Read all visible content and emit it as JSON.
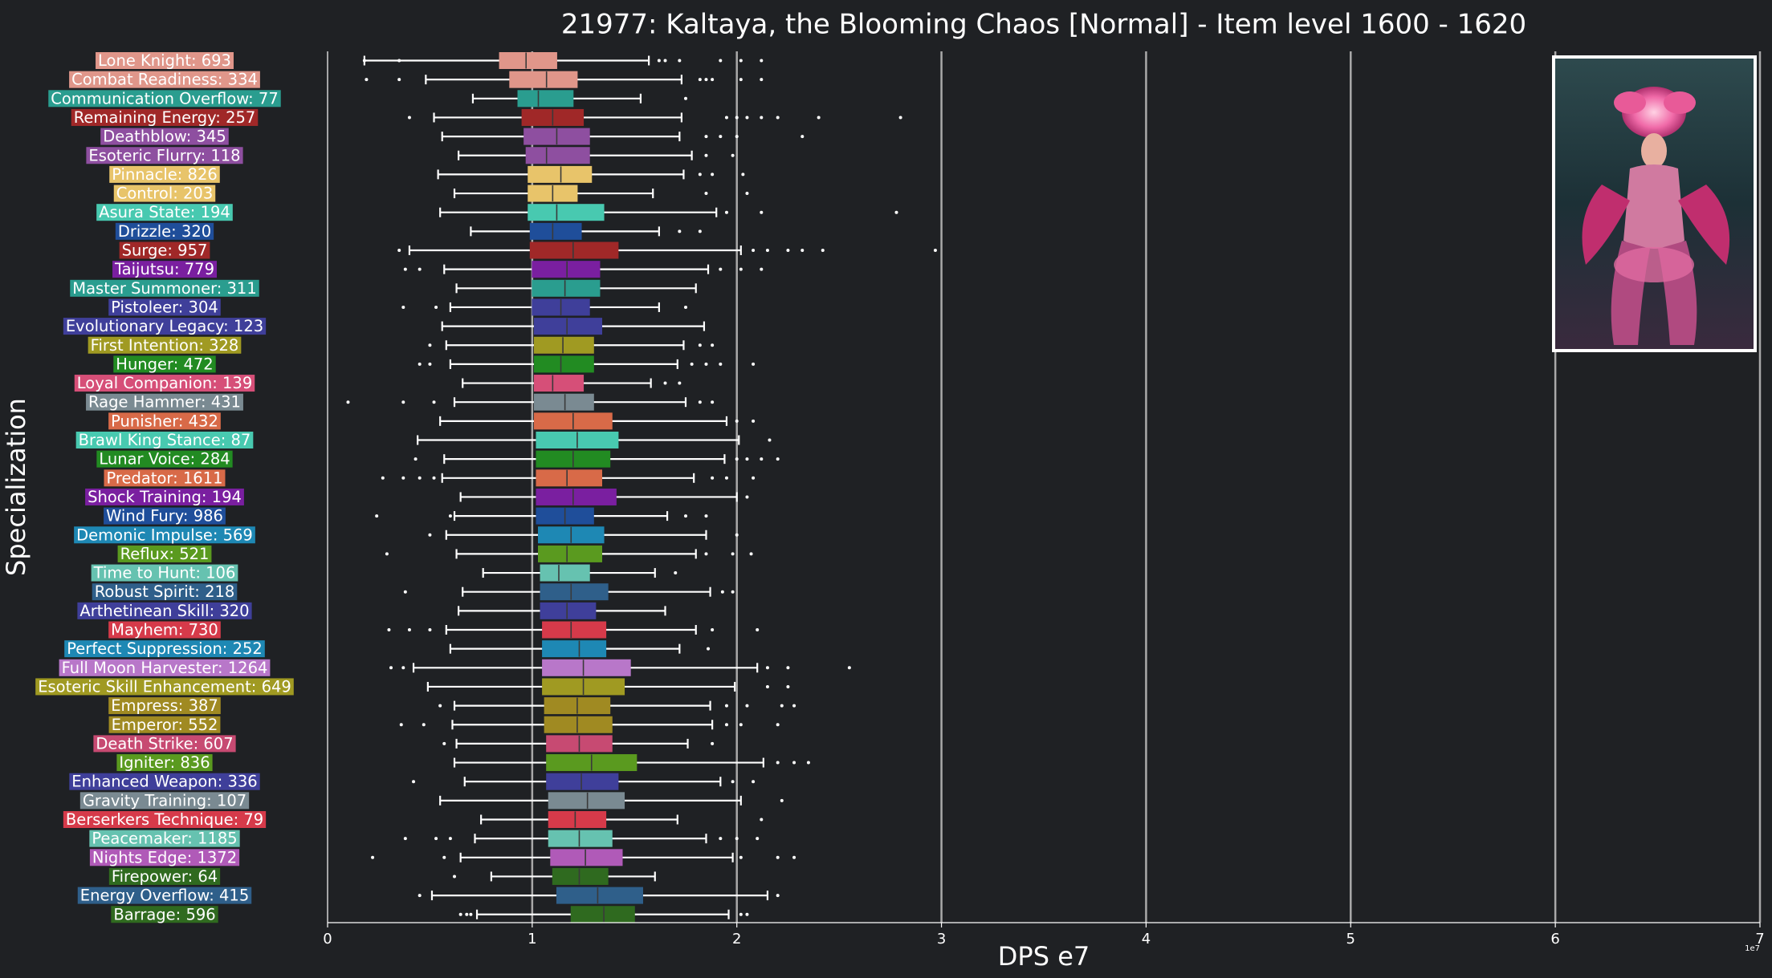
{
  "chart_data": {
    "type": "box",
    "title": "21977: Kaltaya, the Blooming Chaos [Normal] - Item level 1600 - 1620",
    "xlabel": "DPS e7",
    "ylabel": "Specialization",
    "xlim": [
      0,
      7
    ],
    "xticks": [
      "0",
      "1",
      "2",
      "3",
      "4",
      "5",
      "6",
      "7"
    ],
    "offset_text": "1e7",
    "grid": "vertical lines at x ticks",
    "boss_image": "boss-portrait",
    "series": [
      {
        "label": "Lone Knight: 693",
        "color": "#e0968a",
        "wl": 0.18,
        "q1": 0.84,
        "med": 0.97,
        "q3": 1.12,
        "wh": 1.57,
        "out": [
          0.18,
          0.35,
          1.62,
          1.65,
          1.72,
          1.92,
          2.02,
          2.12
        ]
      },
      {
        "label": "Combat Readiness: 334",
        "color": "#e0968a",
        "wl": 0.48,
        "q1": 0.89,
        "med": 1.07,
        "q3": 1.22,
        "wh": 1.73,
        "out": [
          0.19,
          0.35,
          1.82,
          1.85,
          1.88,
          2.02,
          2.12
        ]
      },
      {
        "label": "Communication Overflow: 77",
        "color": "#2a9d8f",
        "wl": 0.71,
        "q1": 0.93,
        "med": 1.03,
        "q3": 1.2,
        "wh": 1.53,
        "out": [
          1.75
        ]
      },
      {
        "label": "Remaining Energy: 257",
        "color": "#a02828",
        "wl": 0.52,
        "q1": 0.95,
        "med": 1.1,
        "q3": 1.25,
        "wh": 1.73,
        "out": [
          0.4,
          1.95,
          2.0,
          2.05,
          2.12,
          2.2,
          2.4,
          2.8
        ]
      },
      {
        "label": "Deathblow: 345",
        "color": "#8e4fa0",
        "wl": 0.56,
        "q1": 0.96,
        "med": 1.12,
        "q3": 1.28,
        "wh": 1.72,
        "out": [
          1.85,
          1.92,
          2.0,
          2.32
        ]
      },
      {
        "label": "Esoteric Flurry: 118",
        "color": "#8e4fa0",
        "wl": 0.64,
        "q1": 0.97,
        "med": 1.07,
        "q3": 1.28,
        "wh": 1.78,
        "out": [
          1.85,
          1.98
        ]
      },
      {
        "label": "Pinnacle: 826",
        "color": "#e8c46a",
        "wl": 0.54,
        "q1": 0.98,
        "med": 1.14,
        "q3": 1.29,
        "wh": 1.74,
        "out": [
          1.82,
          1.88,
          2.03
        ]
      },
      {
        "label": "Control: 203",
        "color": "#e8c46a",
        "wl": 0.62,
        "q1": 0.98,
        "med": 1.1,
        "q3": 1.22,
        "wh": 1.59,
        "out": [
          1.85,
          2.05
        ]
      },
      {
        "label": "Asura State: 194",
        "color": "#48c9b0",
        "wl": 0.55,
        "q1": 0.98,
        "med": 1.12,
        "q3": 1.35,
        "wh": 1.9,
        "out": [
          1.95,
          2.12,
          2.78
        ]
      },
      {
        "label": "Drizzle: 320",
        "color": "#1f4e9a",
        "wl": 0.7,
        "q1": 0.99,
        "med": 1.1,
        "q3": 1.24,
        "wh": 1.62,
        "out": [
          1.72,
          1.82
        ]
      },
      {
        "label": "Surge: 957",
        "color": "#a02828",
        "wl": 0.4,
        "q1": 0.99,
        "med": 1.2,
        "q3": 1.42,
        "wh": 2.02,
        "out": [
          0.35,
          2.08,
          2.15,
          2.25,
          2.32,
          2.42,
          2.97
        ]
      },
      {
        "label": "Taijutsu: 779",
        "color": "#7a1fa0",
        "wl": 0.57,
        "q1": 1.0,
        "med": 1.17,
        "q3": 1.33,
        "wh": 1.86,
        "out": [
          0.38,
          0.45,
          1.92,
          2.02,
          2.12
        ]
      },
      {
        "label": "Master Summoner: 311",
        "color": "#2a9d8f",
        "wl": 0.63,
        "q1": 1.0,
        "med": 1.16,
        "q3": 1.33,
        "wh": 1.8,
        "out": []
      },
      {
        "label": "Pistoleer: 304",
        "color": "#3f3f9a",
        "wl": 0.6,
        "q1": 1.0,
        "med": 1.14,
        "q3": 1.28,
        "wh": 1.62,
        "out": [
          0.37,
          0.53,
          1.75
        ]
      },
      {
        "label": "Evolutionary Legacy: 123",
        "color": "#3f3f9a",
        "wl": 0.56,
        "q1": 1.01,
        "med": 1.17,
        "q3": 1.34,
        "wh": 1.84,
        "out": []
      },
      {
        "label": "First Intention: 328",
        "color": "#a09a22",
        "wl": 0.58,
        "q1": 1.01,
        "med": 1.15,
        "q3": 1.3,
        "wh": 1.74,
        "out": [
          0.5,
          1.82,
          1.88
        ]
      },
      {
        "label": "Hunger: 472",
        "color": "#228b22",
        "wl": 0.6,
        "q1": 1.01,
        "med": 1.14,
        "q3": 1.3,
        "wh": 1.71,
        "out": [
          0.45,
          0.5,
          1.78,
          1.85,
          1.92,
          2.08
        ]
      },
      {
        "label": "Loyal Companion: 139",
        "color": "#d64f78",
        "wl": 0.66,
        "q1": 1.01,
        "med": 1.1,
        "q3": 1.25,
        "wh": 1.58,
        "out": [
          1.65,
          1.72
        ]
      },
      {
        "label": "Rage Hammer: 431",
        "color": "#7a8a92",
        "wl": 0.62,
        "q1": 1.01,
        "med": 1.16,
        "q3": 1.3,
        "wh": 1.75,
        "out": [
          0.1,
          0.37,
          0.52,
          1.82,
          1.88
        ]
      },
      {
        "label": "Punisher: 432",
        "color": "#d86a48",
        "wl": 0.55,
        "q1": 1.01,
        "med": 1.2,
        "q3": 1.39,
        "wh": 1.95,
        "out": [
          2.0,
          2.08
        ]
      },
      {
        "label": "Brawl King Stance: 87",
        "color": "#48c9b0",
        "wl": 0.44,
        "q1": 1.02,
        "med": 1.22,
        "q3": 1.42,
        "wh": 2.01,
        "out": [
          2.16
        ]
      },
      {
        "label": "Lunar Voice: 284",
        "color": "#228b22",
        "wl": 0.57,
        "q1": 1.02,
        "med": 1.2,
        "q3": 1.38,
        "wh": 1.94,
        "out": [
          0.43,
          2.0,
          2.05,
          2.12,
          2.2
        ]
      },
      {
        "label": "Predator: 1611",
        "color": "#d86a48",
        "wl": 0.56,
        "q1": 1.02,
        "med": 1.17,
        "q3": 1.34,
        "wh": 1.79,
        "out": [
          0.27,
          0.37,
          0.45,
          0.52,
          1.88,
          1.95,
          2.08
        ]
      },
      {
        "label": "Shock Training: 194",
        "color": "#7a1fa0",
        "wl": 0.65,
        "q1": 1.02,
        "med": 1.2,
        "q3": 1.41,
        "wh": 2.0,
        "out": [
          2.05
        ]
      },
      {
        "label": "Wind Fury: 986",
        "color": "#1f4e9a",
        "wl": 0.62,
        "q1": 1.02,
        "med": 1.16,
        "q3": 1.3,
        "wh": 1.66,
        "out": [
          0.24,
          0.6,
          1.75,
          1.85
        ]
      },
      {
        "label": "Demonic Impulse: 569",
        "color": "#1e88b4",
        "wl": 0.58,
        "q1": 1.03,
        "med": 1.19,
        "q3": 1.35,
        "wh": 1.85,
        "out": [
          0.5,
          2.0
        ]
      },
      {
        "label": "Reflux: 521",
        "color": "#5a9a1f",
        "wl": 0.63,
        "q1": 1.03,
        "med": 1.17,
        "q3": 1.34,
        "wh": 1.8,
        "out": [
          0.29,
          1.85,
          1.98,
          2.07
        ]
      },
      {
        "label": "Time to Hunt: 106",
        "color": "#66c2b0",
        "wl": 0.76,
        "q1": 1.04,
        "med": 1.13,
        "q3": 1.28,
        "wh": 1.6,
        "out": [
          1.7
        ]
      },
      {
        "label": "Robust Spirit: 218",
        "color": "#2f5f8a",
        "wl": 0.66,
        "q1": 1.04,
        "med": 1.19,
        "q3": 1.37,
        "wh": 1.87,
        "out": [
          0.38,
          1.93,
          1.98
        ]
      },
      {
        "label": "Arthetinean Skill: 320",
        "color": "#3f3f9a",
        "wl": 0.64,
        "q1": 1.04,
        "med": 1.17,
        "q3": 1.31,
        "wh": 1.65,
        "out": []
      },
      {
        "label": "Mayhem: 730",
        "color": "#d63a4a",
        "wl": 0.58,
        "q1": 1.05,
        "med": 1.19,
        "q3": 1.36,
        "wh": 1.8,
        "out": [
          0.3,
          0.4,
          0.5,
          1.88,
          2.1
        ]
      },
      {
        "label": "Perfect Suppression: 252",
        "color": "#1e88b4",
        "wl": 0.6,
        "q1": 1.05,
        "med": 1.23,
        "q3": 1.36,
        "wh": 1.72,
        "out": [
          1.86
        ]
      },
      {
        "label": "Full Moon Harvester: 1264",
        "color": "#b877c9",
        "wl": 0.42,
        "q1": 1.05,
        "med": 1.25,
        "q3": 1.48,
        "wh": 2.1,
        "out": [
          0.31,
          0.37,
          2.15,
          2.25,
          2.55
        ]
      },
      {
        "label": "Esoteric Skill Enhancement: 649",
        "color": "#a09a22",
        "wl": 0.49,
        "q1": 1.05,
        "med": 1.25,
        "q3": 1.45,
        "wh": 1.99,
        "out": [
          2.15,
          2.25
        ]
      },
      {
        "label": "Empress: 387",
        "color": "#a08a22",
        "wl": 0.62,
        "q1": 1.06,
        "med": 1.22,
        "q3": 1.38,
        "wh": 1.87,
        "out": [
          0.55,
          1.95,
          2.05,
          2.22,
          2.28
        ]
      },
      {
        "label": "Emperor: 552",
        "color": "#a08a22",
        "wl": 0.61,
        "q1": 1.06,
        "med": 1.22,
        "q3": 1.39,
        "wh": 1.88,
        "out": [
          0.36,
          0.47,
          1.95,
          2.02,
          2.2
        ]
      },
      {
        "label": "Death Strike: 607",
        "color": "#c74a72",
        "wl": 0.63,
        "q1": 1.07,
        "med": 1.23,
        "q3": 1.39,
        "wh": 1.76,
        "out": [
          0.57,
          1.88
        ]
      },
      {
        "label": "Igniter: 836",
        "color": "#5a9a1f",
        "wl": 0.62,
        "q1": 1.07,
        "med": 1.29,
        "q3": 1.51,
        "wh": 2.13,
        "out": [
          2.2,
          2.28,
          2.35
        ]
      },
      {
        "label": "Enhanced Weapon: 336",
        "color": "#3f3f9a",
        "wl": 0.67,
        "q1": 1.07,
        "med": 1.24,
        "q3": 1.42,
        "wh": 1.92,
        "out": [
          0.42,
          1.98,
          2.08
        ]
      },
      {
        "label": "Gravity Training: 107",
        "color": "#7a8a92",
        "wl": 0.55,
        "q1": 1.08,
        "med": 1.27,
        "q3": 1.45,
        "wh": 2.02,
        "out": [
          2.22
        ]
      },
      {
        "label": "Berserkers Technique: 79",
        "color": "#d63a4a",
        "wl": 0.75,
        "q1": 1.08,
        "med": 1.21,
        "q3": 1.36,
        "wh": 1.71,
        "out": [
          2.12
        ]
      },
      {
        "label": "Peacemaker: 1185",
        "color": "#66c2b0",
        "wl": 0.72,
        "q1": 1.08,
        "med": 1.23,
        "q3": 1.39,
        "wh": 1.85,
        "out": [
          0.38,
          0.53,
          0.6,
          1.92,
          2.0,
          2.1
        ]
      },
      {
        "label": "Nights Edge: 1372",
        "color": "#b05ab8",
        "wl": 0.65,
        "q1": 1.09,
        "med": 1.26,
        "q3": 1.44,
        "wh": 1.98,
        "out": [
          0.22,
          0.57,
          2.02,
          2.2,
          2.28
        ]
      },
      {
        "label": "Firepower: 64",
        "color": "#2f6a1f",
        "wl": 0.8,
        "q1": 1.1,
        "med": 1.23,
        "q3": 1.37,
        "wh": 1.6,
        "out": [
          0.62
        ]
      },
      {
        "label": "Energy Overflow: 415",
        "color": "#2f5f8a",
        "wl": 0.51,
        "q1": 1.12,
        "med": 1.32,
        "q3": 1.54,
        "wh": 2.15,
        "out": [
          0.45,
          2.2
        ]
      },
      {
        "label": "Barrage: 596",
        "color": "#2f6a1f",
        "wl": 0.73,
        "q1": 1.19,
        "med": 1.35,
        "q3": 1.5,
        "wh": 1.96,
        "out": [
          0.65,
          0.68,
          0.7,
          2.02,
          2.05
        ]
      }
    ]
  }
}
